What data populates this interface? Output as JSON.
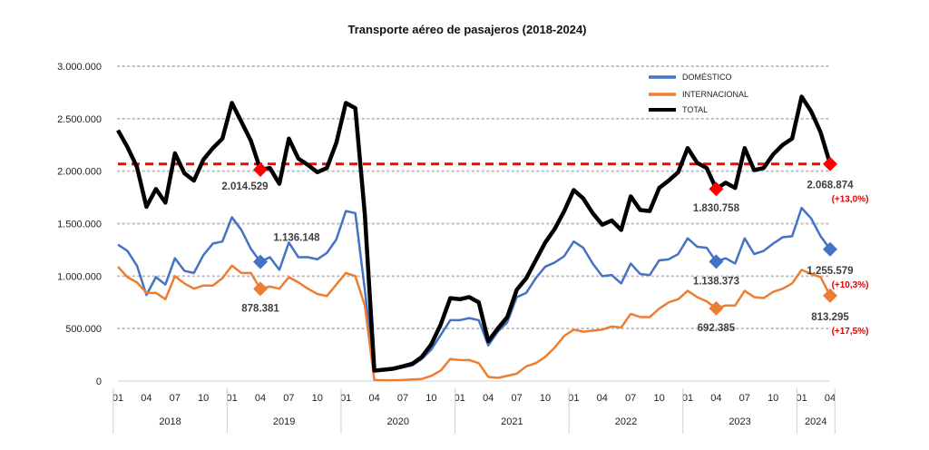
{
  "chart_data": {
    "type": "line",
    "title": "Transporte aéreo de pasajeros (2018-2024)",
    "xlabel": "",
    "ylabel": "",
    "ylim": [
      0,
      3000000
    ],
    "y_ticks": [
      "0",
      "500.000",
      "1.000.000",
      "1.500.000",
      "2.000.000",
      "2.500.000",
      "3.000.000"
    ],
    "y_tick_values": [
      0,
      500000,
      1000000,
      1500000,
      2000000,
      2500000,
      3000000
    ],
    "grid": "horizontal dotted",
    "legend_position": "top-right",
    "x_tick_labels": [
      "01",
      "04",
      "07",
      "10",
      "01",
      "04",
      "07",
      "10",
      "01",
      "04",
      "07",
      "10",
      "01",
      "04",
      "07",
      "10",
      "01",
      "04",
      "07",
      "10",
      "01",
      "04",
      "07",
      "10",
      "01",
      "04"
    ],
    "years": [
      "2018",
      "2019",
      "2020",
      "2021",
      "2022",
      "2023",
      "2024"
    ],
    "months_per_year": [
      12,
      12,
      12,
      12,
      12,
      12,
      4
    ],
    "series": [
      {
        "name": "DOMÉSTICO",
        "color": "#4472c4",
        "values": [
          1300000,
          1240000,
          1100000,
          820000,
          990000,
          920000,
          1170000,
          1050000,
          1030000,
          1200000,
          1310000,
          1330000,
          1560000,
          1440000,
          1260000,
          1136148,
          1180000,
          1060000,
          1320000,
          1180000,
          1180000,
          1160000,
          1220000,
          1350000,
          1620000,
          1600000,
          870000,
          90000,
          100000,
          110000,
          130000,
          150000,
          210000,
          300000,
          440000,
          580000,
          580000,
          600000,
          580000,
          340000,
          470000,
          560000,
          800000,
          840000,
          980000,
          1090000,
          1130000,
          1190000,
          1330000,
          1270000,
          1120000,
          1000000,
          1010000,
          930000,
          1120000,
          1020000,
          1010000,
          1150000,
          1160000,
          1210000,
          1360000,
          1280000,
          1270000,
          1138373,
          1170000,
          1120000,
          1360000,
          1210000,
          1240000,
          1310000,
          1370000,
          1380000,
          1650000,
          1550000,
          1380000,
          1255579
        ]
      },
      {
        "name": "INTERNACIONAL",
        "color": "#ed7d31",
        "values": [
          1090000,
          990000,
          940000,
          840000,
          840000,
          780000,
          1000000,
          930000,
          880000,
          910000,
          910000,
          980000,
          1100000,
          1030000,
          1030000,
          878381,
          900000,
          880000,
          990000,
          940000,
          880000,
          830000,
          810000,
          920000,
          1030000,
          1000000,
          720000,
          10000,
          8000,
          8000,
          10000,
          15000,
          20000,
          50000,
          100000,
          210000,
          200000,
          200000,
          170000,
          40000,
          30000,
          50000,
          70000,
          140000,
          170000,
          230000,
          320000,
          430000,
          490000,
          470000,
          480000,
          490000,
          520000,
          510000,
          640000,
          610000,
          610000,
          690000,
          750000,
          780000,
          860000,
          800000,
          760000,
          692385,
          720000,
          720000,
          860000,
          800000,
          790000,
          850000,
          880000,
          930000,
          1060000,
          1020000,
          990000,
          813295
        ]
      },
      {
        "name": "TOTAL",
        "color": "#000000",
        "values": [
          2390000,
          2230000,
          2040000,
          1660000,
          1830000,
          1700000,
          2170000,
          1980000,
          1910000,
          2110000,
          2220000,
          2310000,
          2650000,
          2470000,
          2290000,
          2014529,
          2030000,
          1880000,
          2310000,
          2120000,
          2060000,
          1990000,
          2030000,
          2270000,
          2650000,
          2600000,
          1590000,
          100000,
          108000,
          118000,
          140000,
          165000,
          230000,
          350000,
          540000,
          790000,
          780000,
          800000,
          750000,
          380000,
          500000,
          610000,
          870000,
          980000,
          1150000,
          1320000,
          1450000,
          1620000,
          1820000,
          1740000,
          1600000,
          1490000,
          1530000,
          1440000,
          1760000,
          1630000,
          1620000,
          1840000,
          1910000,
          1990000,
          2220000,
          2080000,
          2030000,
          1830758,
          1890000,
          1840000,
          2220000,
          2010000,
          2030000,
          2160000,
          2250000,
          2310000,
          2710000,
          2570000,
          2370000,
          2068874
        ]
      }
    ],
    "reference_line": {
      "value": 2068874,
      "color": "#ff0000",
      "style": "dashed"
    },
    "annotations": [
      {
        "series": "TOTAL",
        "index": 15,
        "label": "2.014.529",
        "pct": "",
        "marker_color": "#ff0000",
        "placement": "below-left"
      },
      {
        "series": "DOMÉSTICO",
        "index": 15,
        "label": "1.136.148",
        "pct": "",
        "marker_color": "#4472c4",
        "placement": "above-right"
      },
      {
        "series": "INTERNACIONAL",
        "index": 15,
        "label": "878.381",
        "pct": "",
        "marker_color": "#ed7d31",
        "placement": "below"
      },
      {
        "series": "TOTAL",
        "index": 63,
        "label": "1.830.758",
        "pct": "",
        "marker_color": "#ff0000",
        "placement": "below"
      },
      {
        "series": "DOMÉSTICO",
        "index": 63,
        "label": "1.138.373",
        "pct": "",
        "marker_color": "#4472c4",
        "placement": "below"
      },
      {
        "series": "INTERNACIONAL",
        "index": 63,
        "label": "692.385",
        "pct": "",
        "marker_color": "#ed7d31",
        "placement": "below"
      },
      {
        "series": "TOTAL",
        "index": 75,
        "label": "2.068.874",
        "pct": "(+13,0%)",
        "marker_color": "#ff0000",
        "placement": "below-right"
      },
      {
        "series": "DOMÉSTICO",
        "index": 75,
        "label": "1.255.579",
        "pct": "(+10,3%)",
        "marker_color": "#4472c4",
        "placement": "below-right"
      },
      {
        "series": "INTERNACIONAL",
        "index": 75,
        "label": "813.295",
        "pct": "(+17,5%)",
        "marker_color": "#ed7d31",
        "placement": "below-right"
      }
    ]
  }
}
